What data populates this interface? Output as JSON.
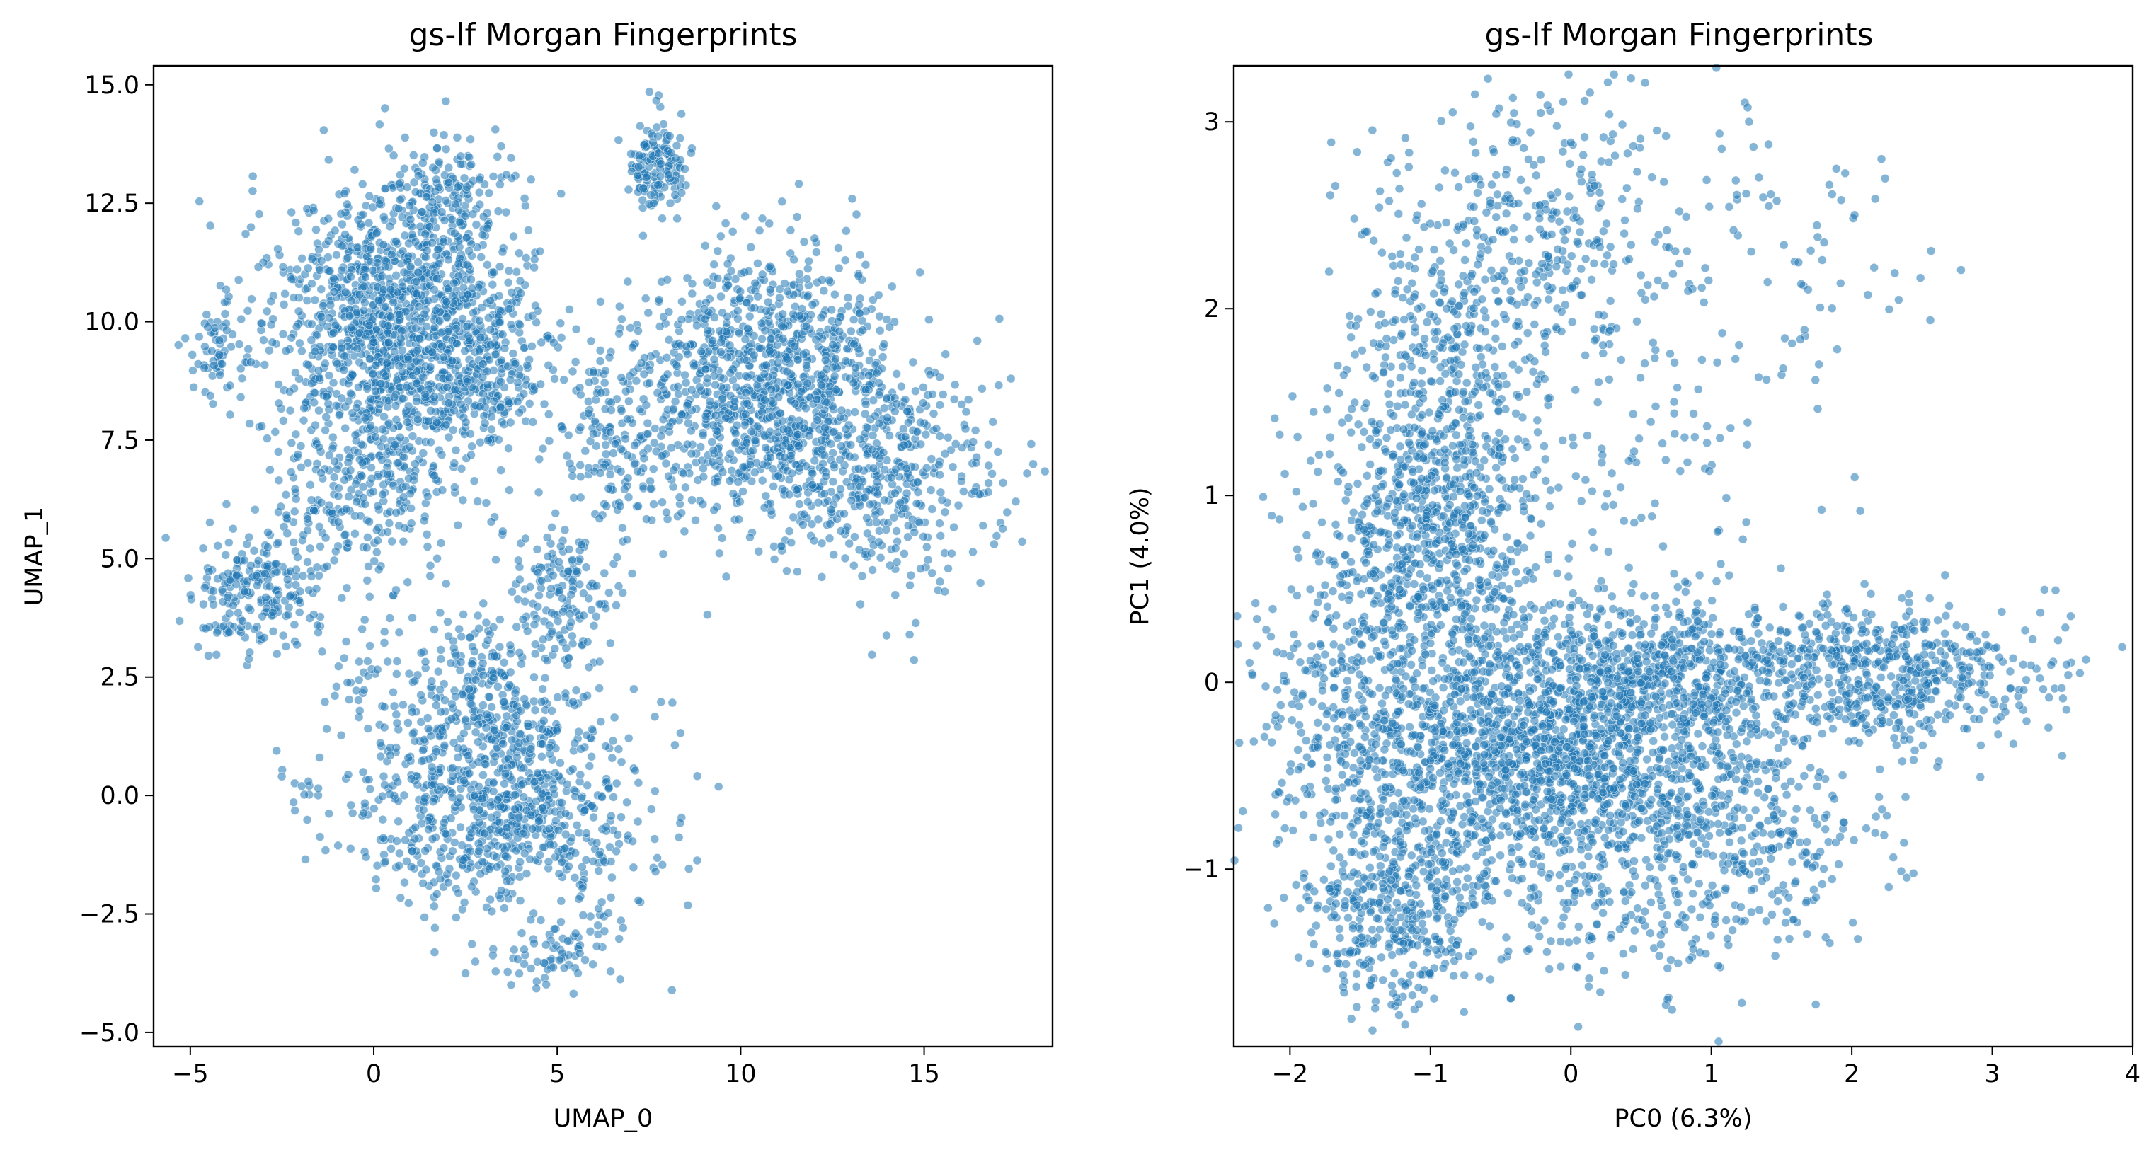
{
  "chart_data": [
    {
      "type": "scatter",
      "title": "gs-lf Morgan Fingerprints",
      "xlabel": "UMAP_0",
      "ylabel": "UMAP_1",
      "xlim": [
        -6.0,
        18.5
      ],
      "ylim": [
        -5.3,
        15.4
      ],
      "xticks": [
        -5,
        0,
        5,
        10,
        15
      ],
      "xtick_labels": [
        "−5",
        "0",
        "5",
        "10",
        "15"
      ],
      "yticks": [
        -5.0,
        -2.5,
        0.0,
        2.5,
        5.0,
        7.5,
        10.0,
        12.5,
        15.0
      ],
      "ytick_labels": [
        "−5.0",
        "−2.5",
        "0.0",
        "2.5",
        "5.0",
        "7.5",
        "10.0",
        "12.5",
        "15.0"
      ],
      "grid": false,
      "legend": "none",
      "point_color": "#1f77b4",
      "point_alpha": 0.55,
      "approx_point_count": 4800,
      "clusters": [
        {
          "cx": 0.5,
          "cy": 9.8,
          "sx": 1.7,
          "sy": 1.6,
          "n": 1300
        },
        {
          "cx": 2.2,
          "cy": 12.5,
          "sx": 0.8,
          "sy": 0.7,
          "n": 140
        },
        {
          "cx": 3.0,
          "cy": 9.0,
          "sx": 0.9,
          "sy": 1.0,
          "n": 200
        },
        {
          "cx": -3.2,
          "cy": 4.3,
          "sx": 0.9,
          "sy": 0.7,
          "n": 220
        },
        {
          "cx": -4.3,
          "cy": 9.5,
          "sx": 0.4,
          "sy": 0.5,
          "n": 60
        },
        {
          "cx": -0.5,
          "cy": 6.2,
          "sx": 1.2,
          "sy": 0.9,
          "n": 200
        },
        {
          "cx": 7.7,
          "cy": 13.3,
          "sx": 0.4,
          "sy": 0.5,
          "n": 140
        },
        {
          "cx": 10.8,
          "cy": 8.6,
          "sx": 1.6,
          "sy": 1.4,
          "n": 1000
        },
        {
          "cx": 14.0,
          "cy": 6.9,
          "sx": 1.6,
          "sy": 1.3,
          "n": 420
        },
        {
          "cx": 6.8,
          "cy": 7.6,
          "sx": 1.1,
          "sy": 1.0,
          "n": 200
        },
        {
          "cx": 3.5,
          "cy": -0.3,
          "sx": 1.9,
          "sy": 1.2,
          "n": 800
        },
        {
          "cx": 3.2,
          "cy": 2.2,
          "sx": 1.4,
          "sy": 0.9,
          "n": 240
        },
        {
          "cx": 5.2,
          "cy": 4.4,
          "sx": 0.7,
          "sy": 0.7,
          "n": 140
        },
        {
          "cx": 5.0,
          "cy": -3.4,
          "sx": 0.8,
          "sy": 0.4,
          "n": 60
        },
        {
          "cx": -2.0,
          "cy": 0.0,
          "sx": 0.4,
          "sy": 0.3,
          "n": 14
        },
        {
          "cx": 0.0,
          "cy": 2.4,
          "sx": 0.6,
          "sy": 0.4,
          "n": 30
        }
      ]
    },
    {
      "type": "scatter",
      "title": "gs-lf Morgan Fingerprints",
      "xlabel": "PC0 (6.3%)",
      "ylabel": "PC1 (4.0%)",
      "xlim": [
        -2.4,
        4.0
      ],
      "ylim": [
        -1.95,
        3.3
      ],
      "xticks": [
        -2,
        -1,
        0,
        1,
        2,
        3,
        4
      ],
      "xtick_labels": [
        "−2",
        "−1",
        "0",
        "1",
        "2",
        "3",
        "4"
      ],
      "yticks": [
        -1,
        0,
        1,
        2,
        3
      ],
      "ytick_labels": [
        "−1",
        "0",
        "1",
        "2",
        "3"
      ],
      "grid": false,
      "legend": "none",
      "point_color": "#1f77b4",
      "point_alpha": 0.55,
      "approx_point_count": 4800,
      "clusters": [
        {
          "cx": -1.0,
          "cy": 0.7,
          "sx": 0.4,
          "sy": 0.55,
          "n": 900
        },
        {
          "cx": -0.9,
          "cy": 1.9,
          "sx": 0.4,
          "sy": 0.45,
          "n": 300
        },
        {
          "cx": -0.1,
          "cy": 2.5,
          "sx": 0.35,
          "sy": 0.35,
          "n": 200
        },
        {
          "cx": 0.3,
          "cy": 1.5,
          "sx": 0.7,
          "sy": 0.7,
          "n": 200
        },
        {
          "cx": 1.6,
          "cy": 2.3,
          "sx": 0.6,
          "sy": 0.45,
          "n": 70
        },
        {
          "cx": 0.0,
          "cy": -0.4,
          "sx": 0.6,
          "sy": 0.35,
          "n": 1300
        },
        {
          "cx": -1.1,
          "cy": -0.6,
          "sx": 0.5,
          "sy": 0.45,
          "n": 500
        },
        {
          "cx": -1.3,
          "cy": -1.3,
          "sx": 0.3,
          "sy": 0.25,
          "n": 300
        },
        {
          "cx": 0.9,
          "cy": 0.05,
          "sx": 0.7,
          "sy": 0.22,
          "n": 600
        },
        {
          "cx": 2.4,
          "cy": 0.05,
          "sx": 0.55,
          "sy": 0.2,
          "n": 450
        },
        {
          "cx": 1.3,
          "cy": -0.8,
          "sx": 0.5,
          "sy": 0.3,
          "n": 300
        },
        {
          "cx": 0.3,
          "cy": -1.3,
          "sx": 0.4,
          "sy": 0.2,
          "n": 100
        },
        {
          "cx": -1.7,
          "cy": 0.0,
          "sx": 0.3,
          "sy": 0.4,
          "n": 150
        }
      ]
    }
  ]
}
